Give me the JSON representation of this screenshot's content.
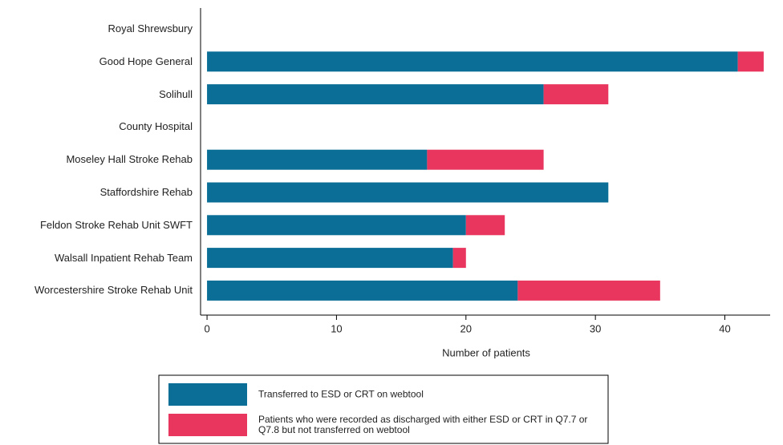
{
  "chart_data": {
    "type": "bar",
    "orientation": "horizontal",
    "stacked": true,
    "xlabel": "Number of patients",
    "categories": [
      "Royal Shrewsbury",
      "Good Hope General",
      "Solihull",
      "County Hospital",
      "Moseley Hall Stroke Rehab",
      "Staffordshire Rehab",
      "Feldon Stroke Rehab Unit SWFT",
      "Walsall Inpatient Rehab Team",
      "Worcestershire Stroke Rehab Unit"
    ],
    "series": [
      {
        "name": "Transferred to ESD or CRT on webtool",
        "color": "#0a6e96",
        "values": [
          0,
          41,
          26,
          0,
          17,
          31,
          20,
          19,
          24
        ]
      },
      {
        "name": "Patients who were recorded as discharged with either ESD or CRT in Q7.7 or Q7.8 but not transferred on webtool",
        "color": "#e8365f",
        "values": [
          0,
          2,
          5,
          0,
          9,
          0,
          3,
          1,
          11
        ]
      }
    ],
    "xlim": [
      -0.5,
      43.5
    ],
    "xticks": [
      0,
      10,
      20,
      30,
      40
    ],
    "grid": false,
    "legend": "bottom"
  }
}
